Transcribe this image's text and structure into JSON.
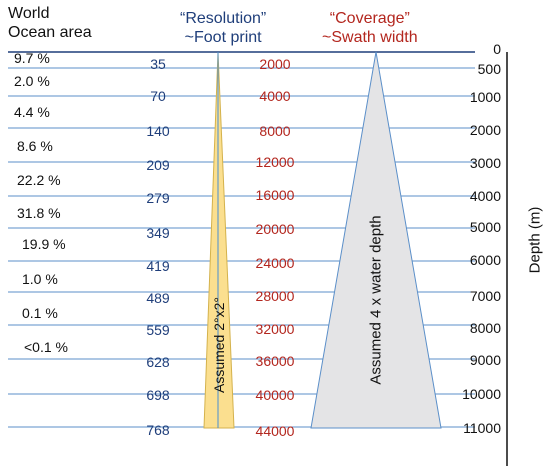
{
  "headers": {
    "world_line1": "World",
    "world_line2": "Ocean area",
    "resolution_line1": "“Resolution”",
    "resolution_line2": "~Foot print",
    "coverage_line1": "“Coverage”",
    "coverage_line2": "~Swath width"
  },
  "ocean_area_pct": [
    "9.7 %",
    "2.0 %",
    "4.4 %",
    "8.6 %",
    "22.2 %",
    "31.8 %",
    "19.9 %",
    "1.0 %",
    "0.1 %",
    "<0.1 %"
  ],
  "footprint_values": [
    "35",
    "70",
    "140",
    "209",
    "279",
    "349",
    "419",
    "489",
    "559",
    "628",
    "698",
    "768"
  ],
  "swath_values": [
    "2000",
    "4000",
    "8000",
    "12000",
    "16000",
    "20000",
    "24000",
    "28000",
    "32000",
    "36000",
    "40000",
    "44000"
  ],
  "depth_values": [
    "0",
    "500",
    "1000",
    "2000",
    "3000",
    "4000",
    "5000",
    "6000",
    "7000",
    "8000",
    "9000",
    "10000",
    "11000"
  ],
  "axis_label": "Depth (m)",
  "beam_label": "Assumed 2°x2°",
  "swath_label": "Assumed 4 x water depth",
  "colors": {
    "gridline": "#5b8fc9",
    "beam_fill": "#fbdf8f",
    "beam_stroke": "#d4b24c",
    "swath_fill": "#e4e4e6",
    "swath_stroke": "#5b8fc9",
    "footprint_text": "#1f3e7a",
    "swath_text": "#b3261e"
  }
}
